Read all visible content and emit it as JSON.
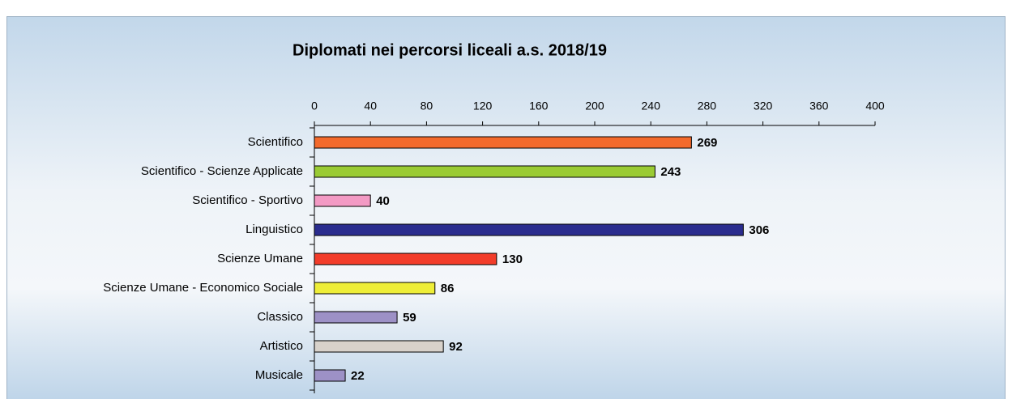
{
  "chart_data": {
    "type": "hbar",
    "title": "Diplomati nei percorsi liceali a.s. 2018/19",
    "categories": [
      "Scientifico",
      "Scientifico - Scienze Applicate",
      "Scientifico - Sportivo",
      "Linguistico",
      "Scienze Umane",
      "Scienze Umane - Economico Sociale",
      "Classico",
      "Artistico",
      "Musicale"
    ],
    "values": [
      269,
      243,
      40,
      306,
      130,
      86,
      59,
      92,
      22
    ],
    "colors": [
      "#f36a2c",
      "#9acb34",
      "#f39ac4",
      "#2a2c8e",
      "#f23c2a",
      "#eeee38",
      "#9d91c6",
      "#d8d2cb",
      "#9d91c6"
    ],
    "xlim": [
      0,
      400
    ],
    "xticks": [
      0,
      40,
      80,
      120,
      160,
      200,
      240,
      280,
      320,
      360,
      400
    ]
  }
}
